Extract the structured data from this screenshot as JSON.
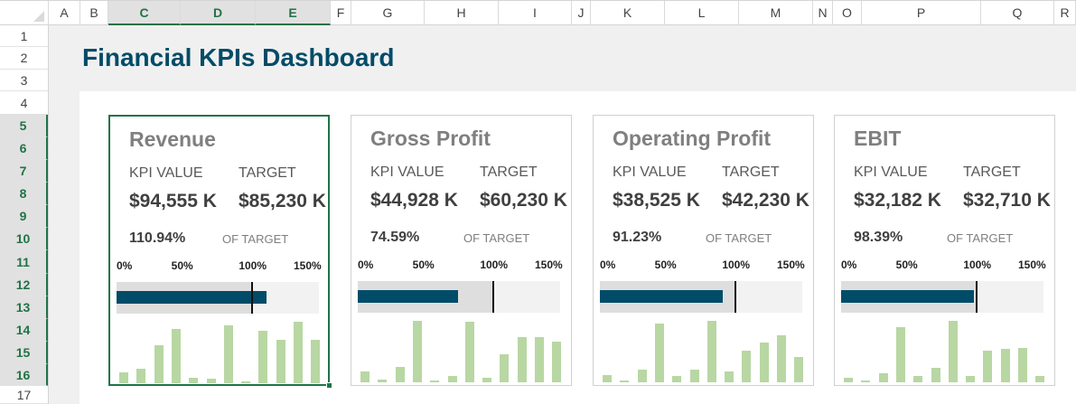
{
  "sheet": {
    "columns": [
      "A",
      "B",
      "C",
      "D",
      "E",
      "F",
      "G",
      "H",
      "I",
      "J",
      "K",
      "L",
      "M",
      "N",
      "O",
      "P",
      "Q",
      "R"
    ],
    "rows": [
      "1",
      "2",
      "3",
      "4",
      "5",
      "6",
      "7",
      "8",
      "9",
      "10",
      "11",
      "12",
      "13",
      "14",
      "15",
      "16",
      "17"
    ],
    "selected_columns": [
      "C",
      "D",
      "E"
    ],
    "selected_rows": [
      "5",
      "6",
      "7",
      "8",
      "9",
      "10",
      "11",
      "12",
      "13",
      "14",
      "15",
      "16"
    ]
  },
  "title": "Financial KPIs Dashboard",
  "colors": {
    "accent": "#004c68",
    "sparkline": "#b8d7a3",
    "selection": "#217346"
  },
  "kpi_label": "KPI VALUE",
  "target_label": "TARGET",
  "of_target_label": "OF TARGET",
  "scale_ticks": [
    "0%",
    "50%",
    "100%",
    "150%"
  ],
  "scale_max_percent": 150,
  "cards": [
    {
      "title": "Revenue",
      "kpi_value": "$94,555 K",
      "target": "$85,230 K",
      "percent_text": "110.94%",
      "percent": 110.94,
      "trend": [
        17,
        23,
        62,
        88,
        9,
        8,
        94,
        3,
        85,
        70,
        100,
        70
      ]
    },
    {
      "title": "Gross Profit",
      "kpi_value": "$44,928 K",
      "target": "$60,230 K",
      "percent_text": "74.59%",
      "percent": 74.59,
      "trend": [
        17,
        5,
        25,
        100,
        3,
        11,
        98,
        7,
        45,
        74,
        74,
        66
      ]
    },
    {
      "title": "Operating Profit",
      "kpi_value": "$38,525 K",
      "target": "$42,230 K",
      "percent_text": "91.23%",
      "percent": 91.23,
      "trend": [
        12,
        3,
        21,
        95,
        10,
        21,
        100,
        17,
        51,
        65,
        77,
        41
      ]
    },
    {
      "title": "EBIT",
      "kpi_value": "$32,182 K",
      "target": "$32,710 K",
      "percent_text": "98.39%",
      "percent": 98.39,
      "trend": [
        8,
        3,
        14,
        90,
        11,
        23,
        100,
        11,
        51,
        54,
        56,
        10
      ]
    }
  ]
}
